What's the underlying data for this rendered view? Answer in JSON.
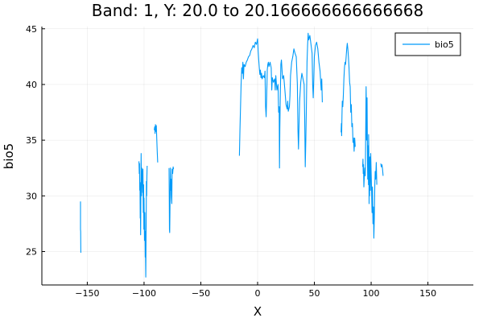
{
  "chart_data": {
    "type": "line",
    "title": "Band: 1, Y: 20.0 to 20.166666666666668",
    "xlabel": "X",
    "ylabel": "bio5",
    "xlim": [
      -190,
      190
    ],
    "ylim": [
      22,
      45.2
    ],
    "xticks": [
      -150,
      -100,
      -50,
      0,
      50,
      100,
      150
    ],
    "xtick_labels": [
      "−150",
      "−100",
      "−50",
      "0",
      "50",
      "100",
      "150"
    ],
    "yticks": [
      25,
      30,
      35,
      40,
      45
    ],
    "ytick_labels": [
      "25",
      "30",
      "35",
      "40",
      "45"
    ],
    "grid": true,
    "legend_position": "top-right",
    "color": "#009af9",
    "series": [
      {
        "name": "bio5",
        "segments": [
          [
            [
              -156,
              29.5
            ],
            [
              -156,
              27.0
            ],
            [
              -155.8,
              26.8
            ],
            [
              -155.7,
              25.0
            ],
            [
              -155.6,
              24.9
            ]
          ],
          [
            [
              -104.5,
              33.1
            ],
            [
              -104.2,
              32.0
            ],
            [
              -104,
              32.9
            ],
            [
              -103.8,
              30.5
            ],
            [
              -103.6,
              31.2
            ],
            [
              -103.4,
              28.0
            ],
            [
              -103.2,
              29.0
            ],
            [
              -103,
              26.5
            ],
            [
              -102.8,
              30.0
            ],
            [
              -102.6,
              33.8
            ],
            [
              -102.4,
              31.5
            ],
            [
              -102.2,
              30.0
            ],
            [
              -102,
              32.5
            ],
            [
              -101.6,
              31.8
            ],
            [
              -101.2,
              30.3
            ],
            [
              -101,
              32.4
            ],
            [
              -100.7,
              28.5
            ],
            [
              -100.4,
              31.0
            ],
            [
              -100.2,
              27.0
            ],
            [
              -100,
              29.8
            ],
            [
              -99.6,
              26.0
            ],
            [
              -99.3,
              28.5
            ],
            [
              -99,
              24.5
            ],
            [
              -98.8,
              26.8
            ],
            [
              -98.6,
              24.0
            ],
            [
              -98.5,
              22.7
            ],
            [
              -98.3,
              25.0
            ],
            [
              -98.1,
              27.8
            ],
            [
              -97.9,
              31.3
            ],
            [
              -97.7,
              30.0
            ],
            [
              -97.5,
              31.8
            ],
            [
              -97.3,
              32.7
            ]
          ],
          [
            [
              -91,
              35.9
            ],
            [
              -90.6,
              36.2
            ],
            [
              -90.3,
              35.6
            ],
            [
              -90,
              36.4
            ],
            [
              -89.6,
              35.8
            ],
            [
              -89.2,
              36.3
            ],
            [
              -88.8,
              35.2
            ],
            [
              -88.4,
              34.0
            ],
            [
              -88,
              33.0
            ]
          ],
          [
            [
              -78,
              32.5
            ],
            [
              -77.8,
              29.5
            ],
            [
              -77.6,
              27.0
            ],
            [
              -77.4,
              26.7
            ],
            [
              -77.2,
              28.5
            ],
            [
              -77,
              31.0
            ],
            [
              -76.8,
              32.5
            ],
            [
              -76.5,
              30.5
            ],
            [
              -76.2,
              31.5
            ],
            [
              -76,
              30.0
            ],
            [
              -75.6,
              29.3
            ],
            [
              -75.3,
              32.4
            ],
            [
              -74.8,
              32.0
            ],
            [
              -74.4,
              32.6
            ],
            [
              -74,
              32.4
            ]
          ],
          [
            [
              -16,
              33.6
            ],
            [
              -15.5,
              36.0
            ],
            [
              -15,
              38.0
            ],
            [
              -14.5,
              40.0
            ],
            [
              -14,
              41.5
            ],
            [
              -13.5,
              41.0
            ],
            [
              -13,
              42.0
            ],
            [
              -12.5,
              40.5
            ],
            [
              -12,
              41.8
            ],
            [
              -11,
              41.6
            ],
            [
              -10,
              42.0
            ],
            [
              -9,
              42.2
            ],
            [
              -8,
              42.5
            ],
            [
              -7,
              42.6
            ],
            [
              -6,
              43.0
            ],
            [
              -5,
              43.2
            ],
            [
              -4,
              43.5
            ],
            [
              -3,
              43.3
            ],
            [
              -2,
              43.8
            ],
            [
              -1,
              43.6
            ],
            [
              0,
              44.1
            ],
            [
              0.5,
              43.0
            ],
            [
              1,
              42.2
            ],
            [
              1.5,
              41.5
            ],
            [
              2,
              40.9
            ],
            [
              2.5,
              41.3
            ],
            [
              3,
              40.6
            ],
            [
              3.5,
              41.0
            ],
            [
              4,
              40.5
            ],
            [
              5,
              40.8
            ],
            [
              6,
              40.6
            ],
            [
              6.5,
              41.2
            ],
            [
              7,
              38.0
            ],
            [
              7.5,
              37.1
            ],
            [
              8,
              39.0
            ],
            [
              8.5,
              41.3
            ],
            [
              9,
              41.8
            ],
            [
              9.5,
              42.0
            ],
            [
              10,
              41.6
            ],
            [
              11,
              42.0
            ],
            [
              12,
              41.5
            ],
            [
              12.5,
              39.5
            ],
            [
              13,
              40.6
            ],
            [
              14,
              40.2
            ],
            [
              15,
              40.5
            ],
            [
              15.5,
              39.5
            ],
            [
              16,
              40.8
            ],
            [
              17,
              39.5
            ],
            [
              18,
              40.0
            ],
            [
              18.5,
              37.5
            ],
            [
              19,
              38.0
            ],
            [
              19.3,
              32.5
            ],
            [
              19.6,
              36.0
            ],
            [
              20,
              39.0
            ],
            [
              20.5,
              41.8
            ],
            [
              21,
              42.2
            ],
            [
              22,
              40.5
            ],
            [
              23,
              40.8
            ],
            [
              24,
              39.5
            ],
            [
              25,
              38.2
            ],
            [
              26,
              37.8
            ],
            [
              26.5,
              38.5
            ],
            [
              27,
              37.6
            ],
            [
              28,
              38.0
            ],
            [
              28.5,
              39.0
            ],
            [
              29,
              40.8
            ],
            [
              30,
              42.0
            ],
            [
              31,
              42.5
            ],
            [
              32,
              43.2
            ],
            [
              33,
              42.8
            ],
            [
              34,
              42.5
            ],
            [
              35,
              40.0
            ],
            [
              35.5,
              36.0
            ],
            [
              36,
              34.2
            ],
            [
              36.5,
              36.5
            ],
            [
              37,
              38.5
            ],
            [
              38,
              40.2
            ],
            [
              39,
              41.0
            ],
            [
              40,
              40.5
            ],
            [
              41,
              40.0
            ],
            [
              41.5,
              37.0
            ],
            [
              42,
              32.6
            ],
            [
              42.5,
              35.0
            ],
            [
              43,
              38.5
            ],
            [
              43.5,
              42.0
            ],
            [
              44,
              43.5
            ],
            [
              44.5,
              44.6
            ],
            [
              45,
              44.0
            ],
            [
              46,
              44.4
            ],
            [
              47,
              43.6
            ],
            [
              48,
              42.8
            ],
            [
              48.5,
              40.0
            ],
            [
              49,
              38.8
            ],
            [
              49.5,
              40.5
            ],
            [
              50,
              42.5
            ],
            [
              51,
              43.5
            ],
            [
              52,
              43.8
            ],
            [
              53,
              43.2
            ],
            [
              54,
              42.0
            ],
            [
              55,
              41.2
            ],
            [
              56,
              39.5
            ],
            [
              56.5,
              40.5
            ],
            [
              57,
              38.4
            ]
          ],
          [
            [
              73.5,
              35.7
            ],
            [
              73.8,
              36.5
            ],
            [
              74,
              35.4
            ],
            [
              74.3,
              37.2
            ],
            [
              74.6,
              38.5
            ],
            [
              75,
              38.0
            ],
            [
              75.5,
              39.0
            ],
            [
              76,
              40.5
            ],
            [
              76.5,
              41.5
            ],
            [
              77,
              42.0
            ],
            [
              77.5,
              41.8
            ],
            [
              78,
              42.5
            ],
            [
              78.5,
              43.2
            ],
            [
              79,
              43.7
            ],
            [
              79.5,
              43.2
            ],
            [
              80,
              42.5
            ],
            [
              80.5,
              41.6
            ],
            [
              81,
              40.2
            ],
            [
              81.5,
              39.8
            ],
            [
              82,
              37.5
            ],
            [
              82.5,
              38.2
            ],
            [
              83,
              36.2
            ],
            [
              83.5,
              36.5
            ],
            [
              84,
              34.8
            ],
            [
              84.5,
              35.2
            ],
            [
              85,
              34.0
            ],
            [
              85.5,
              35.2
            ],
            [
              86,
              34.4
            ]
          ],
          [
            [
              92.5,
              32.6
            ],
            [
              92.8,
              33.3
            ],
            [
              93,
              32.0
            ],
            [
              93.3,
              32.8
            ],
            [
              93.6,
              30.8
            ],
            [
              94,
              31.8
            ],
            [
              94.4,
              32.5
            ],
            [
              94.8,
              31.8
            ],
            [
              95,
              33.0
            ],
            [
              95.2,
              36.0
            ],
            [
              95.4,
              38.5
            ],
            [
              95.6,
              39.8
            ],
            [
              95.8,
              38.0
            ],
            [
              96,
              35.0
            ],
            [
              96.2,
              37.5
            ],
            [
              96.4,
              38.8
            ],
            [
              96.6,
              35.5
            ],
            [
              96.8,
              33.0
            ],
            [
              97,
              31.5
            ],
            [
              97.2,
              34.5
            ],
            [
              97.4,
              33.8
            ],
            [
              97.6,
              31.0
            ],
            [
              97.8,
              35.5
            ],
            [
              98,
              34.0
            ],
            [
              98.2,
              29.3
            ],
            [
              98.4,
              32.5
            ],
            [
              98.6,
              30.0
            ],
            [
              98.8,
              33.5
            ],
            [
              99,
              31.8
            ],
            [
              99.3,
              30.5
            ],
            [
              99.6,
              33.8
            ],
            [
              100,
              32.0
            ],
            [
              100.4,
              30.5
            ],
            [
              100.8,
              28.5
            ],
            [
              101.2,
              30.8
            ],
            [
              101.6,
              27.5
            ],
            [
              102,
              29.0
            ],
            [
              102.4,
              26.2
            ],
            [
              102.8,
              28.0
            ],
            [
              103.2,
              31.0
            ],
            [
              103.6,
              32.2
            ],
            [
              104,
              31.5
            ],
            [
              104.5,
              33.0
            ],
            [
              105,
              31.0
            ]
          ],
          [
            [
              108.5,
              32.9
            ],
            [
              109,
              32.6
            ],
            [
              109.5,
              32.8
            ],
            [
              110,
              32.4
            ],
            [
              110.5,
              31.8
            ]
          ]
        ]
      }
    ]
  }
}
